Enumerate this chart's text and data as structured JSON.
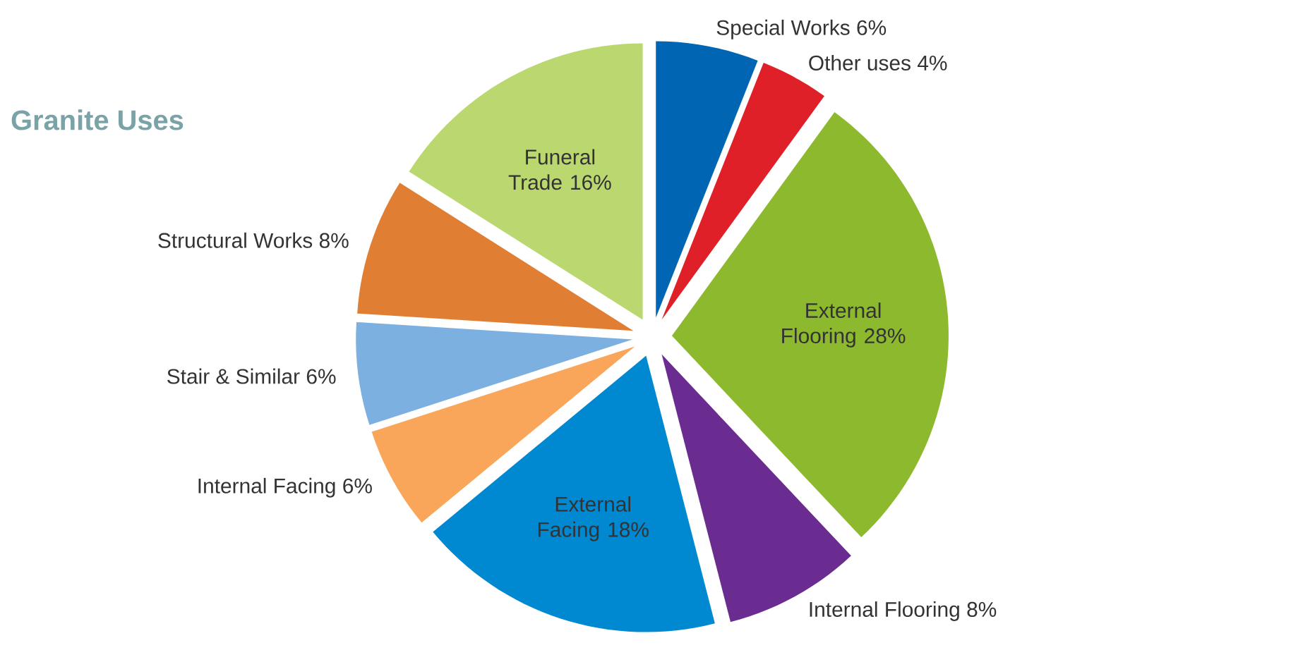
{
  "chart_data": {
    "type": "pie",
    "title": "Granite Uses",
    "categories": [
      "Special Works",
      "Other uses",
      "External Flooring",
      "Internal Flooring",
      "External Facing",
      "Internal Facing",
      "Stair & Similar",
      "Structural Works",
      "Funeral Trade"
    ],
    "values": [
      6,
      4,
      28,
      8,
      18,
      6,
      6,
      8,
      16
    ],
    "value_labels": [
      "6%",
      "4%",
      "28%",
      "8%",
      "18%",
      "6%",
      "6%",
      "8%",
      "16%"
    ],
    "colors": [
      "#0066b3",
      "#e02028",
      "#8db92e",
      "#6b2c91",
      "#0088d1",
      "#f9a65a",
      "#7cb0e0",
      "#e07f34",
      "#bbd870"
    ]
  }
}
